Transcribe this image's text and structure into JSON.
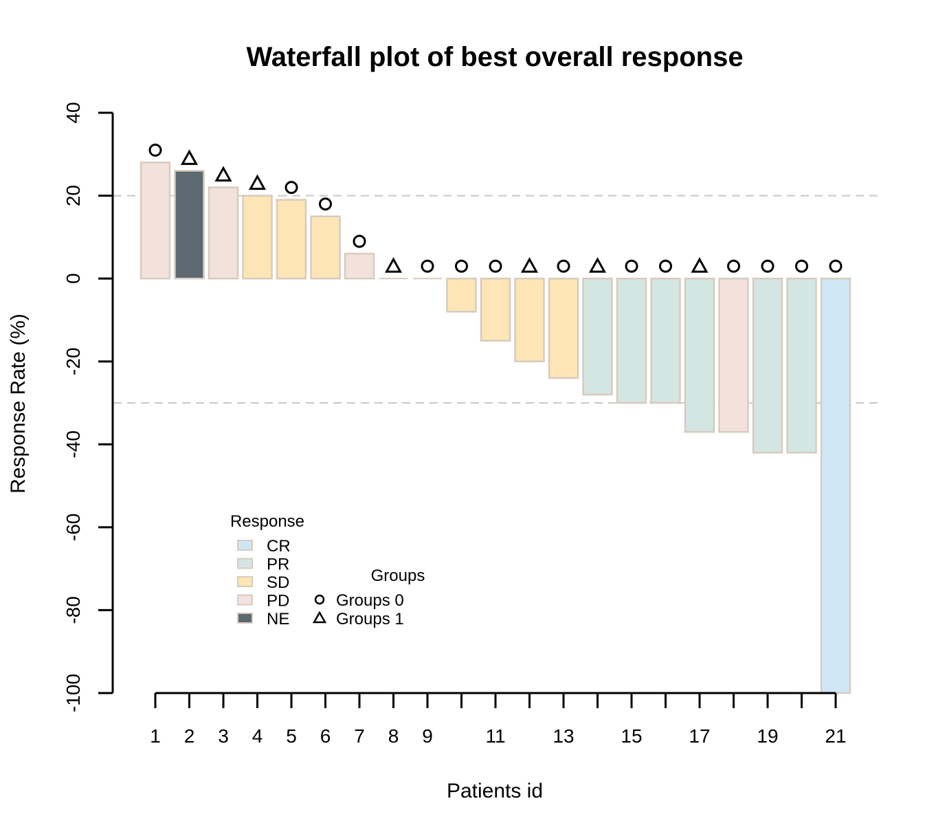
{
  "chart_data": {
    "type": "bar",
    "title": "Waterfall plot of best overall response",
    "xlabel": "Patients id",
    "ylabel": "Response Rate (%)",
    "ylim": [
      -100,
      40
    ],
    "y_ticks": [
      40,
      20,
      0,
      -20,
      -40,
      -60,
      -80,
      -100
    ],
    "x_tick_labels": [
      "1",
      "2",
      "3",
      "4",
      "5",
      "6",
      "7",
      "8",
      "9",
      "11",
      "13",
      "15",
      "17",
      "19",
      "21"
    ],
    "x_tick_positions": [
      1,
      2,
      3,
      4,
      5,
      6,
      7,
      8,
      9,
      11,
      13,
      15,
      17,
      19,
      21
    ],
    "x_tick_marks": [
      1,
      2,
      3,
      4,
      5,
      6,
      7,
      8,
      9,
      10,
      11,
      12,
      13,
      14,
      15,
      16,
      17,
      18,
      19,
      20,
      21
    ],
    "reference_lines": [
      20,
      -30
    ],
    "categories": [
      1,
      2,
      3,
      4,
      5,
      6,
      7,
      8,
      9,
      10,
      11,
      12,
      13,
      14,
      15,
      16,
      17,
      18,
      19,
      20,
      21
    ],
    "values": [
      28,
      26,
      22,
      20,
      19,
      15,
      6,
      0,
      0,
      -8,
      -15,
      -20,
      -24,
      -28,
      -30,
      -30,
      -37,
      -37,
      -42,
      -42,
      -100
    ],
    "response": [
      "PD",
      "NE",
      "PD",
      "SD",
      "SD",
      "SD",
      "PD",
      "SD",
      "SD",
      "SD",
      "SD",
      "SD",
      "SD",
      "PR",
      "PR",
      "PR",
      "PR",
      "PD",
      "PR",
      "PR",
      "CR"
    ],
    "group": [
      0,
      1,
      1,
      1,
      0,
      0,
      0,
      1,
      0,
      0,
      0,
      1,
      0,
      1,
      0,
      0,
      1,
      0,
      0,
      0,
      0
    ],
    "colors": {
      "CR": "#cfe6f5",
      "PR": "#d4e6e1",
      "SD": "#fde5b5",
      "PD": "#f3e2dc",
      "NE": "#5c6970",
      "bar_border": "#d7cbbf",
      "reference_line": "#c8c8c8"
    },
    "legend_response": {
      "title": "Response",
      "items": [
        "CR",
        "PR",
        "SD",
        "PD",
        "NE"
      ]
    },
    "legend_groups": {
      "title": "Groups",
      "items": [
        {
          "label": "Groups 0",
          "marker": "circle"
        },
        {
          "label": "Groups 1",
          "marker": "triangle"
        }
      ]
    },
    "legend_placement": "bottom-left",
    "grid": false
  }
}
